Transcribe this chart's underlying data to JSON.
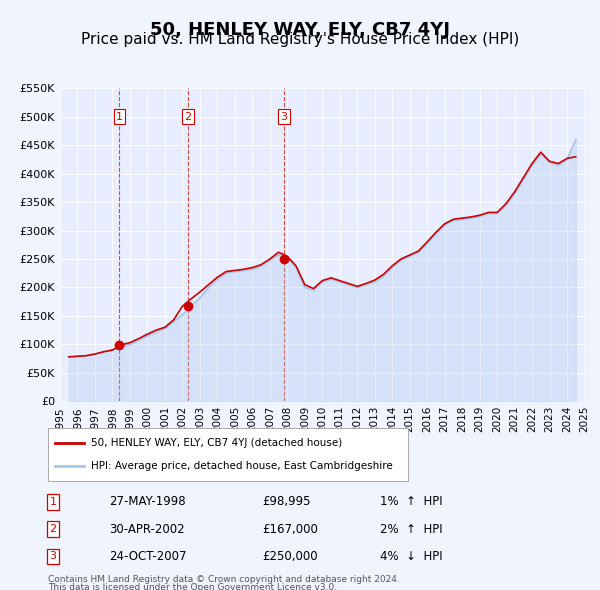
{
  "title": "50, HENLEY WAY, ELY, CB7 4YJ",
  "subtitle": "Price paid vs. HM Land Registry's House Price Index (HPI)",
  "xlabel": "",
  "ylabel": "",
  "ylim": [
    0,
    550000
  ],
  "yticks": [
    0,
    50000,
    100000,
    150000,
    200000,
    250000,
    300000,
    350000,
    400000,
    450000,
    500000,
    550000
  ],
  "ytick_labels": [
    "£0",
    "£50K",
    "£100K",
    "£150K",
    "£200K",
    "£250K",
    "£300K",
    "£350K",
    "£400K",
    "£450K",
    "£500K",
    "£550K"
  ],
  "background_color": "#f0f4ff",
  "plot_bg_color": "#e8eeff",
  "grid_color": "#ffffff",
  "sale_color": "#cc0000",
  "hpi_color": "#aac4e8",
  "sale_line_color": "#cc0000",
  "title_fontsize": 13,
  "subtitle_fontsize": 11,
  "transactions": [
    {
      "num": 1,
      "date": "27-MAY-1998",
      "price": 98995,
      "pct": "1%",
      "dir": "↑",
      "x_year": 1998.4
    },
    {
      "num": 2,
      "date": "30-APR-2002",
      "price": 167000,
      "pct": "2%",
      "dir": "↑",
      "x_year": 2002.33
    },
    {
      "num": 3,
      "date": "24-OCT-2007",
      "price": 250000,
      "pct": "4%",
      "dir": "↓",
      "x_year": 2007.8
    }
  ],
  "legend_sale_label": "50, HENLEY WAY, ELY, CB7 4YJ (detached house)",
  "legend_hpi_label": "HPI: Average price, detached house, East Cambridgeshire",
  "footnote1": "Contains HM Land Registry data © Crown copyright and database right 2024.",
  "footnote2": "This data is licensed under the Open Government Licence v3.0.",
  "hpi_data": {
    "years": [
      1995.5,
      1996.0,
      1996.5,
      1997.0,
      1997.5,
      1998.0,
      1998.5,
      1999.0,
      1999.5,
      2000.0,
      2000.5,
      2001.0,
      2001.5,
      2002.0,
      2002.5,
      2003.0,
      2003.5,
      2004.0,
      2004.5,
      2005.0,
      2005.5,
      2006.0,
      2006.5,
      2007.0,
      2007.5,
      2008.0,
      2008.5,
      2009.0,
      2009.5,
      2010.0,
      2010.5,
      2011.0,
      2011.5,
      2012.0,
      2012.5,
      2013.0,
      2013.5,
      2014.0,
      2014.5,
      2015.0,
      2015.5,
      2016.0,
      2016.5,
      2017.0,
      2017.5,
      2018.0,
      2018.5,
      2019.0,
      2019.5,
      2020.0,
      2020.5,
      2021.0,
      2021.5,
      2022.0,
      2022.5,
      2023.0,
      2023.5,
      2024.0,
      2024.5
    ],
    "values": [
      78000,
      79000,
      80000,
      83000,
      87000,
      90000,
      95000,
      100000,
      107000,
      115000,
      122000,
      128000,
      140000,
      152000,
      168000,
      182000,
      200000,
      215000,
      225000,
      228000,
      230000,
      232000,
      238000,
      248000,
      258000,
      252000,
      235000,
      200000,
      195000,
      210000,
      215000,
      210000,
      205000,
      200000,
      205000,
      210000,
      220000,
      235000,
      248000,
      255000,
      262000,
      278000,
      295000,
      310000,
      318000,
      320000,
      322000,
      325000,
      330000,
      330000,
      345000,
      365000,
      390000,
      415000,
      435000,
      420000,
      415000,
      425000,
      460000
    ]
  },
  "sale_line_data": {
    "years": [
      1995.5,
      1996.0,
      1996.5,
      1997.0,
      1997.5,
      1998.0,
      1998.5,
      1999.0,
      1999.5,
      2000.0,
      2000.5,
      2001.0,
      2001.5,
      2002.0,
      2002.5,
      2003.0,
      2003.5,
      2004.0,
      2004.5,
      2005.0,
      2005.5,
      2006.0,
      2006.5,
      2007.0,
      2007.5,
      2008.0,
      2008.5,
      2009.0,
      2009.5,
      2010.0,
      2010.5,
      2011.0,
      2011.5,
      2012.0,
      2012.5,
      2013.0,
      2013.5,
      2014.0,
      2014.5,
      2015.0,
      2015.5,
      2016.0,
      2016.5,
      2017.0,
      2017.5,
      2018.0,
      2018.5,
      2019.0,
      2019.5,
      2020.0,
      2020.5,
      2021.0,
      2021.5,
      2022.0,
      2022.5,
      2023.0,
      2023.5,
      2024.0,
      2024.5
    ],
    "values": [
      78000,
      79000,
      80000,
      83000,
      87000,
      90000,
      98995,
      103000,
      110000,
      118000,
      125000,
      130000,
      143000,
      167000,
      180000,
      192000,
      205000,
      218000,
      228000,
      230000,
      232000,
      235000,
      240000,
      250000,
      262000,
      255000,
      238000,
      205000,
      198000,
      212000,
      217000,
      212000,
      207000,
      202000,
      207000,
      213000,
      223000,
      238000,
      250000,
      257000,
      264000,
      280000,
      297000,
      312000,
      320000,
      322000,
      324000,
      327000,
      332000,
      332000,
      347000,
      368000,
      393000,
      418000,
      438000,
      422000,
      418000,
      427000,
      430000
    ]
  },
  "xtick_years": [
    1995,
    1996,
    1997,
    1998,
    1999,
    2000,
    2001,
    2002,
    2003,
    2004,
    2005,
    2006,
    2007,
    2008,
    2009,
    2010,
    2011,
    2012,
    2013,
    2014,
    2015,
    2016,
    2017,
    2018,
    2019,
    2020,
    2021,
    2022,
    2023,
    2024,
    2025
  ],
  "xlim": [
    1995,
    2025.2
  ]
}
